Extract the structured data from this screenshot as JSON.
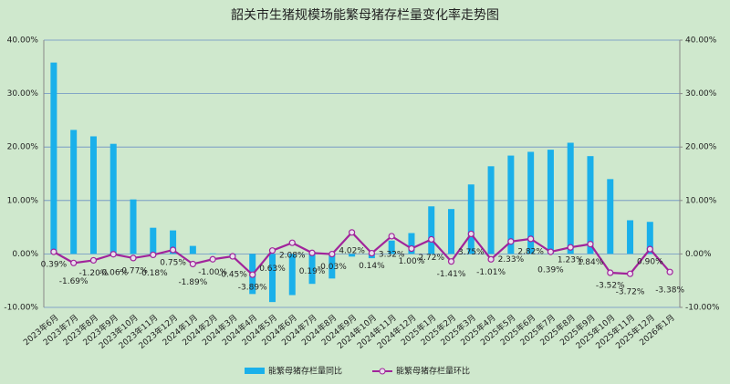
{
  "chart_data": {
    "type": "bar-line",
    "title": "韶关市生猪规模场能繁母猪存栏量变化率走势图",
    "categories": [
      "2023年6月",
      "2023年7月",
      "2023年8月",
      "2023年9月",
      "2023年10月",
      "2023年11月",
      "2023年12月",
      "2024年1月",
      "2024年2月",
      "2024年3月",
      "2024年4月",
      "2024年5月",
      "2024年6月",
      "2024年7月",
      "2024年8月",
      "2024年9月",
      "2024年10月",
      "2024年11月",
      "2024年12月",
      "2025年1月",
      "2025年2月",
      "2025年3月",
      "2025年4月",
      "2025年5月",
      "2025年6月",
      "2025年7月",
      "2025年8月",
      "2025年9月",
      "2025年10月",
      "2025年11月",
      "2025年12月",
      "2026年1月"
    ],
    "series": [
      {
        "name": "能繁母猪存栏量同比",
        "type": "bar",
        "color": "#1ab0ea",
        "values": [
          35.8,
          23.2,
          22.0,
          20.6,
          10.2,
          4.9,
          4.4,
          1.5,
          0.1,
          -0.3,
          -7.5,
          -9.0,
          -7.7,
          -5.6,
          -4.6,
          -0.5,
          -0.8,
          2.5,
          3.9,
          8.9,
          8.4,
          13.0,
          16.4,
          18.4,
          19.1,
          19.5,
          20.8,
          18.3,
          14.0,
          6.3,
          6.0,
          null
        ]
      },
      {
        "name": "能繁母猪存栏量环比",
        "type": "line",
        "axis": "y2",
        "color": "#a1249b",
        "values": [
          0.39,
          -1.69,
          -1.2,
          -0.06,
          -0.77,
          -0.18,
          0.75,
          -1.89,
          -1.0,
          -0.45,
          -3.89,
          0.63,
          2.08,
          0.19,
          -0.03,
          4.02,
          0.14,
          3.32,
          1.0,
          2.72,
          -1.41,
          3.75,
          -1.01,
          2.33,
          2.82,
          0.39,
          1.23,
          1.84,
          -3.52,
          -3.72,
          0.9,
          -3.38
        ],
        "value_labels": [
          "0.39%",
          "-1.69%",
          "-1.20%",
          "-0.06%",
          "-0.77%",
          "-0.18%",
          "0.75%",
          "-1.89%",
          "-1.00%",
          "-0.45%",
          "-3.89%",
          "0.63%",
          "2.08%",
          "0.19%",
          "-0.03%",
          "4.02%",
          "0.14%",
          "3.32%",
          "1.00%",
          "2.72%",
          "-1.41%",
          "3.75%",
          "-1.01%",
          "2.33%",
          "2.82%",
          "0.39%",
          "1.23%",
          "1.84%",
          "-3.52%",
          "-3.72%",
          "0.90%",
          "-3.38%"
        ]
      }
    ],
    "ylim": [
      -10,
      40
    ],
    "yticks": [
      {
        "value": -10,
        "label": "-10.00%"
      },
      {
        "value": 0,
        "label": "0.00%"
      },
      {
        "value": 10,
        "label": "10.00%"
      },
      {
        "value": 20,
        "label": "20.00%"
      },
      {
        "value": 30,
        "label": "30.00%"
      },
      {
        "value": 40,
        "label": "40.00%"
      }
    ],
    "y2lim": [
      -10,
      40
    ],
    "y2ticks": [
      {
        "value": -10,
        "label": "-10.00%"
      },
      {
        "value": 0,
        "label": "0.00%"
      },
      {
        "value": 10,
        "label": "10.00%"
      },
      {
        "value": 20,
        "label": "20.00%"
      },
      {
        "value": 30,
        "label": "30.00%"
      },
      {
        "value": 40,
        "label": "40.00%"
      }
    ],
    "grid": true,
    "legend": "bottom"
  }
}
